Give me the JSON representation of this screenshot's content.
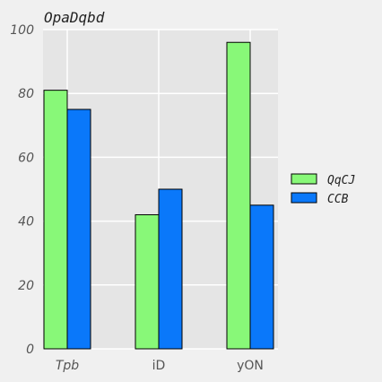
{
  "chart_data": {
    "type": "bar",
    "title": "OpaDqbd",
    "xlabel": "",
    "ylabel": "",
    "categories": [
      "Tpb",
      "iD",
      "yON"
    ],
    "series": [
      {
        "name": "QqCJ",
        "values": [
          81,
          42,
          96
        ],
        "color": "#88f878"
      },
      {
        "name": "CCB",
        "values": [
          75,
          50,
          45
        ],
        "color": "#0a78fa"
      }
    ],
    "ylim": [
      0,
      100
    ],
    "yticks": [
      0,
      20,
      40,
      60,
      80,
      100
    ],
    "ytick_labels": [
      "0",
      "20",
      "40",
      "60",
      "80",
      "100"
    ],
    "grid": true,
    "legend_position": "right",
    "colors": {
      "page_background": "#f0f0f0",
      "plot_background": "#e5e5e5",
      "grid": "#ffffff",
      "bar_edge": "#000000"
    }
  }
}
